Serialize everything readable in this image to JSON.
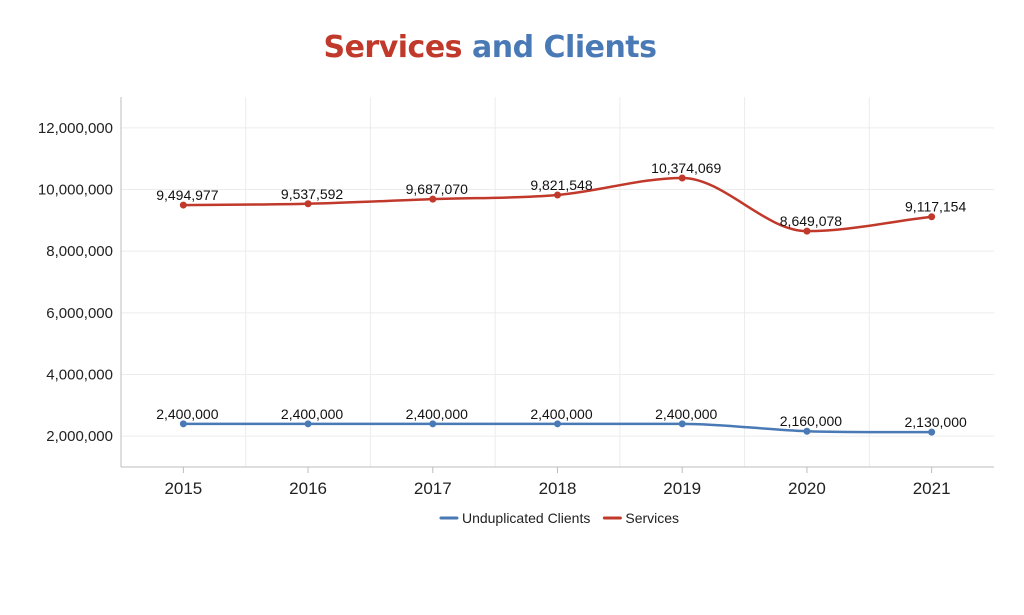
{
  "title": {
    "part1": "Services",
    "part2": "and Clients",
    "part1_color": "#c0392b",
    "part2_color": "#4a7ab6"
  },
  "chart_data": {
    "type": "line",
    "title": "Services and Clients",
    "xlabel": "",
    "ylabel": "",
    "categories": [
      "2015",
      "2016",
      "2017",
      "2018",
      "2019",
      "2020",
      "2021"
    ],
    "ylim": [
      1000000,
      13000000
    ],
    "yticks": [
      2000000,
      4000000,
      6000000,
      8000000,
      10000000,
      12000000
    ],
    "ytick_labels": [
      "2,000,000",
      "4,000,000",
      "6,000,000",
      "8,000,000",
      "10,000,000",
      "12,000,000"
    ],
    "grid": true,
    "legend_position": "bottom",
    "series": [
      {
        "name": "Unduplicated Clients",
        "color": "#4a7ab6",
        "values": [
          2400000,
          2400000,
          2400000,
          2400000,
          2400000,
          2160000,
          2130000
        ],
        "labels": [
          "2,400,000",
          "2,400,000",
          "2,400,000",
          "2,400,000",
          "2,400,000",
          "2,160,000",
          "2,130,000"
        ]
      },
      {
        "name": "Services",
        "color": "#c0392b",
        "values": [
          9494977,
          9537592,
          9687070,
          9821548,
          10374069,
          8649078,
          9117154
        ],
        "labels": [
          "9,494,977",
          "9,537,592",
          "9,687,070",
          "9,821,548",
          "10,374,069",
          "8,649,078",
          "9,117,154"
        ]
      }
    ]
  }
}
